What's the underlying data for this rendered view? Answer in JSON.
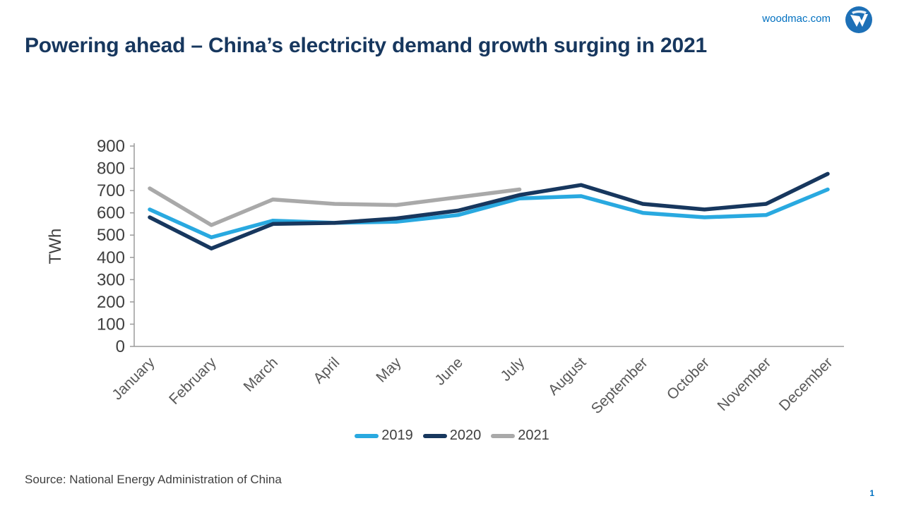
{
  "header": {
    "site_link": "woodmac.com",
    "title": "Powering ahead – China’s electricity demand growth surging in 2021",
    "logo_name": "woodmac-logo"
  },
  "colors": {
    "title_navy": "#17375e",
    "link_blue": "#0070c0",
    "axis_gray": "#9b9b9b",
    "tick_text": "#404040",
    "category_text": "#595959",
    "logo_blue": "#1d70b7"
  },
  "chart_data": {
    "type": "line",
    "title": "",
    "xlabel": "",
    "ylabel": "TWh",
    "ylim": [
      0,
      900
    ],
    "ytick_step": 100,
    "grid": false,
    "legend_position": "bottom",
    "categories": [
      "January",
      "February",
      "March",
      "April",
      "May",
      "June",
      "July",
      "August",
      "September",
      "October",
      "November",
      "December"
    ],
    "series": [
      {
        "name": "2019",
        "color": "#29a9e0",
        "values": [
          615,
          490,
          565,
          555,
          560,
          590,
          665,
          675,
          600,
          580,
          590,
          705
        ]
      },
      {
        "name": "2020",
        "color": "#17375e",
        "values": [
          580,
          440,
          550,
          555,
          575,
          610,
          680,
          725,
          640,
          615,
          640,
          775
        ]
      },
      {
        "name": "2021",
        "color": "#a9a9a9",
        "values": [
          710,
          545,
          660,
          640,
          635,
          670,
          705,
          null,
          null,
          null,
          null,
          null
        ]
      }
    ]
  },
  "footer": {
    "source": "Source: National Energy Administration of China",
    "page_number": "1"
  }
}
